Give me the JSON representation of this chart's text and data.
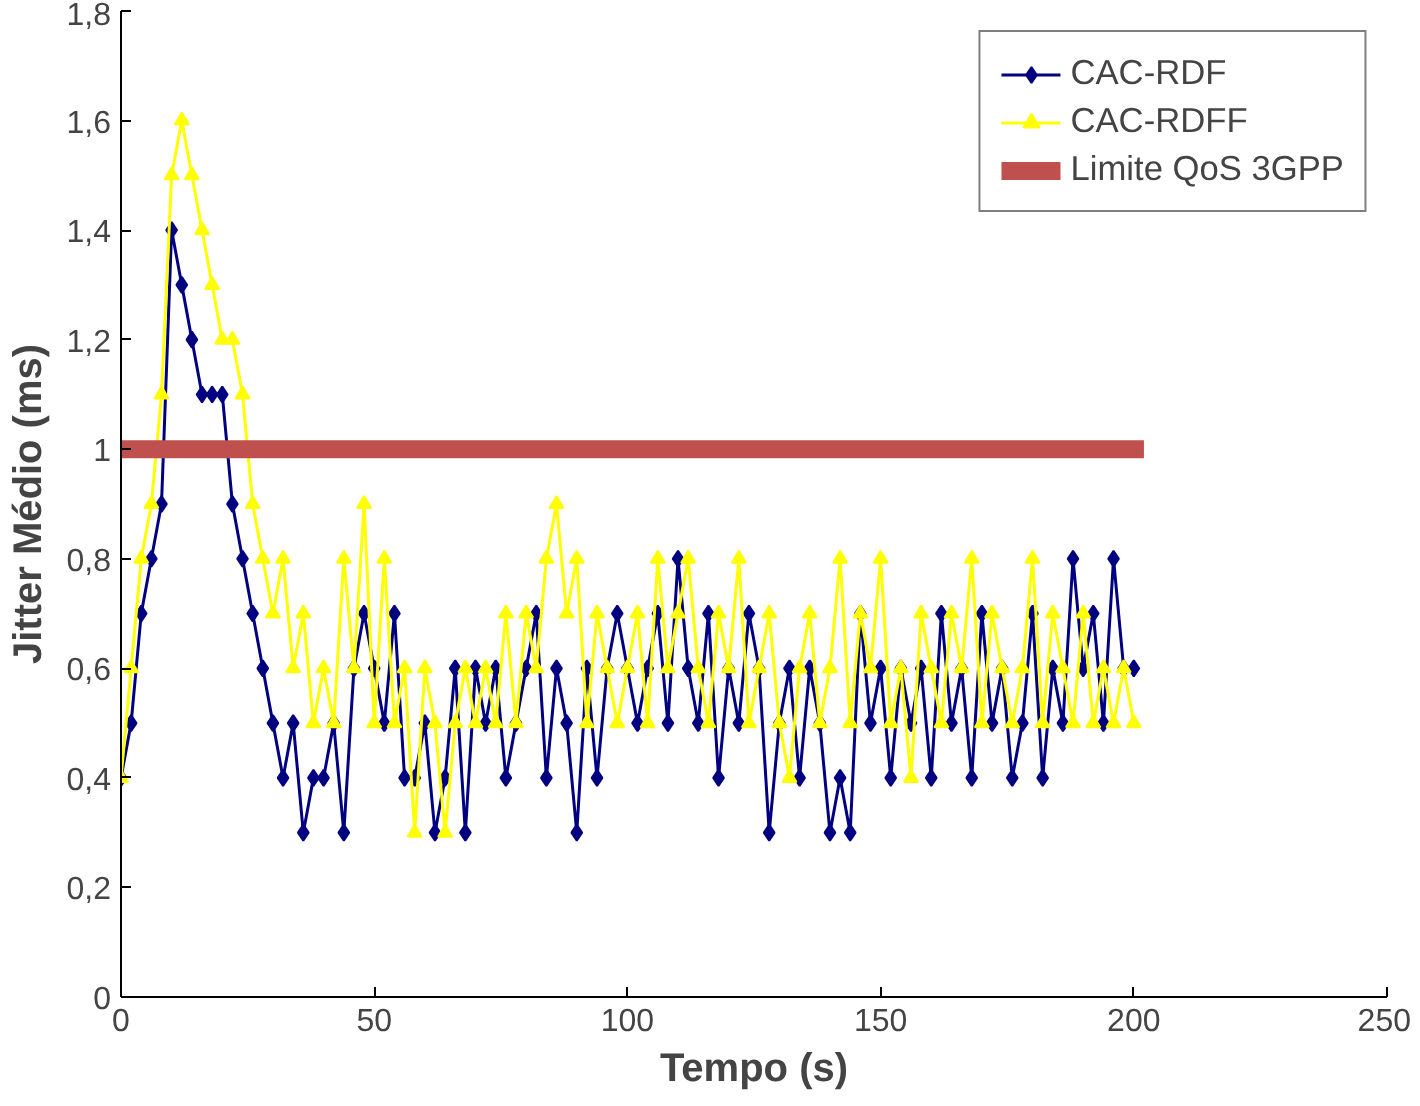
{
  "chart_data": {
    "type": "line",
    "xlabel": "Tempo (s)",
    "ylabel": "Jitter Médio (ms)",
    "x": [
      0,
      2,
      4,
      6,
      8,
      10,
      12,
      14,
      16,
      18,
      20,
      22,
      24,
      26,
      28,
      30,
      32,
      34,
      36,
      38,
      40,
      42,
      44,
      46,
      48,
      50,
      52,
      54,
      56,
      58,
      60,
      62,
      64,
      66,
      68,
      70,
      72,
      74,
      76,
      78,
      80,
      82,
      84,
      86,
      88,
      90,
      92,
      94,
      96,
      98,
      100,
      102,
      104,
      106,
      108,
      110,
      112,
      114,
      116,
      118,
      120,
      122,
      124,
      126,
      128,
      130,
      132,
      134,
      136,
      138,
      140,
      142,
      144,
      146,
      148,
      150,
      152,
      154,
      156,
      158,
      160,
      162,
      164,
      166,
      168,
      170,
      172,
      174,
      176,
      178,
      180,
      182,
      184,
      186,
      188,
      190,
      192,
      194,
      196,
      198,
      200
    ],
    "series": [
      {
        "name": "CAC-RDF",
        "color": "#000080",
        "marker": "diamond",
        "values": [
          0.4,
          0.5,
          0.7,
          0.8,
          0.9,
          1.4,
          1.3,
          1.2,
          1.1,
          1.1,
          1.1,
          0.9,
          0.8,
          0.7,
          0.6,
          0.5,
          0.4,
          0.5,
          0.3,
          0.4,
          0.4,
          0.5,
          0.3,
          0.6,
          0.7,
          0.6,
          0.5,
          0.7,
          0.4,
          0.4,
          0.5,
          0.3,
          0.4,
          0.6,
          0.3,
          0.6,
          0.5,
          0.6,
          0.4,
          0.5,
          0.6,
          0.7,
          0.4,
          0.6,
          0.5,
          0.3,
          0.6,
          0.4,
          0.6,
          0.7,
          0.6,
          0.5,
          0.6,
          0.7,
          0.5,
          0.8,
          0.6,
          0.5,
          0.7,
          0.4,
          0.6,
          0.5,
          0.7,
          0.6,
          0.3,
          0.5,
          0.6,
          0.4,
          0.6,
          0.5,
          0.3,
          0.4,
          0.3,
          0.7,
          0.5,
          0.6,
          0.4,
          0.6,
          0.5,
          0.6,
          0.4,
          0.7,
          0.5,
          0.6,
          0.4,
          0.7,
          0.5,
          0.6,
          0.4,
          0.5,
          0.7,
          0.4,
          0.6,
          0.5,
          0.8,
          0.6,
          0.7,
          0.5,
          0.8,
          0.6,
          0.6
        ]
      },
      {
        "name": "CAC-RDFF",
        "color": "#ffff00",
        "marker": "triangle",
        "values": [
          0.4,
          0.6,
          0.8,
          0.9,
          1.1,
          1.5,
          1.6,
          1.5,
          1.4,
          1.3,
          1.2,
          1.2,
          1.1,
          0.9,
          0.8,
          0.7,
          0.8,
          0.6,
          0.7,
          0.5,
          0.6,
          0.5,
          0.8,
          0.6,
          0.9,
          0.5,
          0.8,
          0.5,
          0.6,
          0.3,
          0.6,
          0.5,
          0.3,
          0.5,
          0.6,
          0.5,
          0.6,
          0.5,
          0.7,
          0.5,
          0.7,
          0.6,
          0.8,
          0.9,
          0.7,
          0.8,
          0.5,
          0.7,
          0.6,
          0.5,
          0.6,
          0.7,
          0.5,
          0.8,
          0.6,
          0.7,
          0.8,
          0.6,
          0.5,
          0.7,
          0.6,
          0.8,
          0.5,
          0.6,
          0.7,
          0.5,
          0.4,
          0.6,
          0.7,
          0.5,
          0.6,
          0.8,
          0.5,
          0.7,
          0.6,
          0.8,
          0.5,
          0.6,
          0.4,
          0.7,
          0.6,
          0.5,
          0.7,
          0.6,
          0.8,
          0.5,
          0.7,
          0.6,
          0.5,
          0.6,
          0.8,
          0.5,
          0.7,
          0.6,
          0.5,
          0.7,
          0.5,
          0.6,
          0.5,
          0.6,
          0.5
        ]
      },
      {
        "name": "Limite QoS 3GPP",
        "color": "#c0504d",
        "marker": "none",
        "x": [
          0,
          202
        ],
        "values": [
          1,
          1
        ]
      }
    ],
    "xlim": [
      0,
      250
    ],
    "xticks": [
      0,
      50,
      100,
      150,
      200,
      250
    ],
    "ylim": [
      0,
      1.8
    ],
    "yticks": [
      0,
      {
        "value": 0.2,
        "label": "0,2"
      },
      {
        "value": 0.4,
        "label": "0,4"
      },
      {
        "value": 0.6,
        "label": "0,6"
      },
      {
        "value": 0.8,
        "label": "0,8"
      },
      1,
      {
        "value": 1.2,
        "label": "1,2"
      },
      {
        "value": 1.4,
        "label": "1,4"
      },
      {
        "value": 1.6,
        "label": "1,6"
      },
      {
        "value": 1.8,
        "label": "1,8"
      }
    ],
    "grid": false,
    "legend": "top right"
  }
}
